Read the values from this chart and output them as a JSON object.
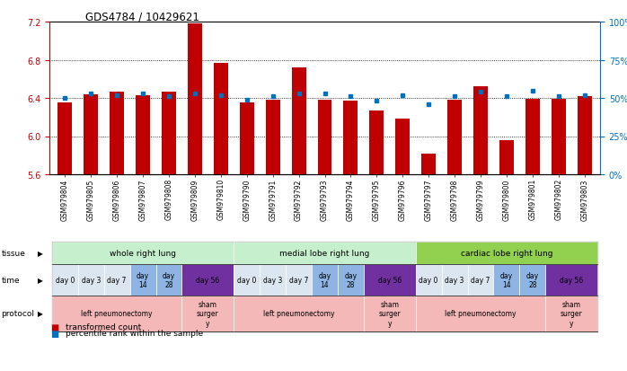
{
  "title": "GDS4784 / 10429621",
  "samples": [
    "GSM979804",
    "GSM979805",
    "GSM979806",
    "GSM979807",
    "GSM979808",
    "GSM979809",
    "GSM979810",
    "GSM979790",
    "GSM979791",
    "GSM979792",
    "GSM979793",
    "GSM979794",
    "GSM979795",
    "GSM979796",
    "GSM979797",
    "GSM979798",
    "GSM979799",
    "GSM979800",
    "GSM979801",
    "GSM979802",
    "GSM979803"
  ],
  "red_values": [
    6.35,
    6.44,
    6.47,
    6.43,
    6.47,
    7.18,
    6.77,
    6.35,
    6.38,
    6.72,
    6.38,
    6.37,
    6.27,
    6.18,
    5.82,
    6.38,
    6.52,
    5.96,
    6.39,
    6.39,
    6.42
  ],
  "blue_values": [
    50,
    53,
    52,
    53,
    51,
    53,
    52,
    49,
    51,
    53,
    53,
    51,
    48,
    52,
    46,
    51,
    54,
    51,
    55,
    51,
    52
  ],
  "ylim_left": [
    5.6,
    7.2
  ],
  "ylim_right": [
    0,
    100
  ],
  "yticks_left": [
    5.6,
    6.0,
    6.4,
    6.8,
    7.2
  ],
  "yticks_right": [
    0,
    25,
    50,
    75,
    100
  ],
  "tissue_groups": [
    {
      "label": "whole right lung",
      "start": 0,
      "end": 7,
      "color": "#c6efce"
    },
    {
      "label": "medial lobe right lung",
      "start": 7,
      "end": 14,
      "color": "#c6efce"
    },
    {
      "label": "cardiac lobe right lung",
      "start": 14,
      "end": 21,
      "color": "#92d050"
    }
  ],
  "time_groups": [
    {
      "label": "day 0",
      "start": 0,
      "end": 1,
      "color": "#dce6f1"
    },
    {
      "label": "day 3",
      "start": 1,
      "end": 2,
      "color": "#dce6f1"
    },
    {
      "label": "day 7",
      "start": 2,
      "end": 3,
      "color": "#dce6f1"
    },
    {
      "label": "day\n14",
      "start": 3,
      "end": 4,
      "color": "#8db4e2"
    },
    {
      "label": "day\n28",
      "start": 4,
      "end": 5,
      "color": "#8db4e2"
    },
    {
      "label": "day 56",
      "start": 5,
      "end": 7,
      "color": "#7030a0"
    },
    {
      "label": "day 0",
      "start": 7,
      "end": 8,
      "color": "#dce6f1"
    },
    {
      "label": "day 3",
      "start": 8,
      "end": 9,
      "color": "#dce6f1"
    },
    {
      "label": "day 7",
      "start": 9,
      "end": 10,
      "color": "#dce6f1"
    },
    {
      "label": "day\n14",
      "start": 10,
      "end": 11,
      "color": "#8db4e2"
    },
    {
      "label": "day\n28",
      "start": 11,
      "end": 12,
      "color": "#8db4e2"
    },
    {
      "label": "day 56",
      "start": 12,
      "end": 14,
      "color": "#7030a0"
    },
    {
      "label": "day 0",
      "start": 14,
      "end": 15,
      "color": "#dce6f1"
    },
    {
      "label": "day 3",
      "start": 15,
      "end": 16,
      "color": "#dce6f1"
    },
    {
      "label": "day 7",
      "start": 16,
      "end": 17,
      "color": "#dce6f1"
    },
    {
      "label": "day\n14",
      "start": 17,
      "end": 18,
      "color": "#8db4e2"
    },
    {
      "label": "day\n28",
      "start": 18,
      "end": 19,
      "color": "#8db4e2"
    },
    {
      "label": "day 56",
      "start": 19,
      "end": 21,
      "color": "#7030a0"
    }
  ],
  "protocol_groups": [
    {
      "label": "left pneumonectomy",
      "start": 0,
      "end": 5,
      "color": "#f4b8b8"
    },
    {
      "label": "sham\nsurger\ny",
      "start": 5,
      "end": 7,
      "color": "#f4b8b8"
    },
    {
      "label": "left pneumonectomy",
      "start": 7,
      "end": 12,
      "color": "#f4b8b8"
    },
    {
      "label": "sham\nsurger\ny",
      "start": 12,
      "end": 14,
      "color": "#f4b8b8"
    },
    {
      "label": "left pneumonectomy",
      "start": 14,
      "end": 19,
      "color": "#f4b8b8"
    },
    {
      "label": "sham\nsurger\ny",
      "start": 19,
      "end": 21,
      "color": "#f4b8b8"
    }
  ],
  "bar_color": "#c00000",
  "blue_color": "#0070c0",
  "left_axis_color": "#c00000",
  "right_axis_color": "#0070c0",
  "background_color": "#ffffff",
  "grid_color": "#000000"
}
